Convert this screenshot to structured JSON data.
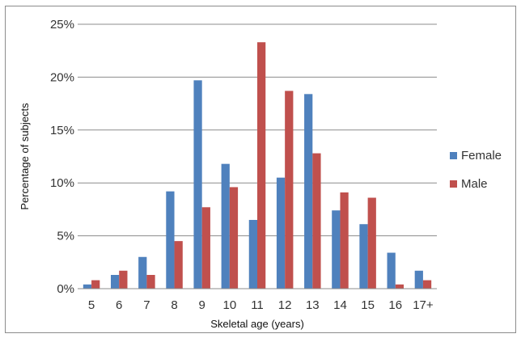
{
  "chart_data": {
    "type": "bar",
    "title": "",
    "xlabel": "Skeletal age (years)",
    "ylabel": "Percentage of  subjects",
    "ylim": [
      0,
      25
    ],
    "yticks": [
      "0%",
      "5%",
      "10%",
      "15%",
      "20%",
      "25%"
    ],
    "grid": true,
    "legend_position": "right",
    "categories": [
      "5",
      "6",
      "7",
      "8",
      "9",
      "10",
      "11",
      "12",
      "13",
      "14",
      "15",
      "16",
      "17+"
    ],
    "series": [
      {
        "name": "Female",
        "color": "#4f81bd",
        "values": [
          0.4,
          1.3,
          3.0,
          9.2,
          19.7,
          11.8,
          6.5,
          10.5,
          18.4,
          7.4,
          6.1,
          3.4,
          1.7
        ]
      },
      {
        "name": "Male",
        "color": "#c0504d",
        "values": [
          0.8,
          1.7,
          1.3,
          4.5,
          7.7,
          9.6,
          23.3,
          18.7,
          12.8,
          9.1,
          8.6,
          0.4,
          0.8
        ]
      }
    ]
  }
}
